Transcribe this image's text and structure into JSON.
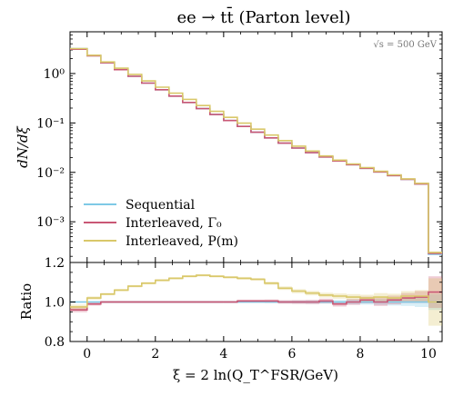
{
  "chart_data": {
    "type": "line",
    "style": "histogram-step",
    "title": "ee → tt̄ (Parton level)",
    "annotation": "√s = 500 GeV",
    "xlabel": "ξ = 2 ln(Q_T^FSR/GeV)",
    "xlim": [
      -0.5,
      10.4
    ],
    "x_ticks": [
      0,
      2,
      4,
      6,
      8,
      10
    ],
    "x_tick_labels": [
      "0",
      "2",
      "4",
      "6",
      "8",
      "10"
    ],
    "bin_edges": [
      -0.5,
      0,
      0.4,
      0.8,
      1.2,
      1.6,
      2.0,
      2.4,
      2.8,
      3.2,
      3.6,
      4.0,
      4.4,
      4.8,
      5.2,
      5.6,
      6.0,
      6.4,
      6.8,
      7.2,
      7.6,
      8.0,
      8.4,
      8.8,
      9.2,
      9.6,
      10.0,
      10.4
    ],
    "main_panel": {
      "ylabel": "dN/dξ",
      "yscale": "log",
      "ylim": [
        0.00015,
        7
      ],
      "y_ticks": [
        0.001,
        0.01,
        0.1,
        1
      ],
      "y_tick_labels": [
        "10⁻³",
        "10⁻²",
        "10⁻¹",
        "10⁰"
      ],
      "series": [
        {
          "name": "Sequential",
          "color": "#7ec9e6",
          "values": [
            3.2,
            2.3,
            1.65,
            1.2,
            0.88,
            0.64,
            0.47,
            0.35,
            0.26,
            0.195,
            0.148,
            0.112,
            0.085,
            0.065,
            0.05,
            0.039,
            0.031,
            0.025,
            0.0205,
            0.017,
            0.0143,
            0.0121,
            0.0102,
            0.0086,
            0.0072,
            0.0058,
            0.00022
          ]
        },
        {
          "name": "Interleaved, Γ₀",
          "color": "#c95775",
          "values": [
            3.1,
            2.28,
            1.65,
            1.2,
            0.88,
            0.64,
            0.47,
            0.35,
            0.26,
            0.195,
            0.148,
            0.112,
            0.085,
            0.065,
            0.05,
            0.039,
            0.031,
            0.025,
            0.0205,
            0.017,
            0.0143,
            0.0121,
            0.0102,
            0.0086,
            0.0072,
            0.0058,
            0.00023
          ]
        },
        {
          "name": "Interleaved, P(m)",
          "color": "#d9c86a",
          "values": [
            3.2,
            2.35,
            1.72,
            1.28,
            0.96,
            0.71,
            0.53,
            0.4,
            0.3,
            0.225,
            0.172,
            0.13,
            0.099,
            0.075,
            0.057,
            0.044,
            0.034,
            0.027,
            0.0215,
            0.0177,
            0.0148,
            0.0125,
            0.0105,
            0.0089,
            0.0074,
            0.006,
            0.00024
          ]
        }
      ]
    },
    "ratio_panel": {
      "ylabel": "Ratio",
      "ylim": [
        0.8,
        1.2
      ],
      "y_ticks": [
        0.8,
        1.0,
        1.2
      ],
      "y_tick_labels": [
        "0.8",
        "1.0",
        "1.2"
      ],
      "series": [
        {
          "name": "Sequential",
          "values": [
            1.0,
            1.0,
            1.0,
            1.0,
            1.0,
            1.0,
            1.0,
            1.0,
            1.0,
            1.0,
            1.0,
            1.0,
            1.0,
            1.0,
            1.0,
            1.0,
            1.0,
            1.0,
            1.0,
            1.0,
            1.0,
            1.0,
            1.0,
            1.0,
            1.0,
            1.0,
            1.0
          ],
          "band": [
            0.004,
            0.004,
            0.004,
            0.004,
            0.004,
            0.004,
            0.004,
            0.004,
            0.004,
            0.004,
            0.004,
            0.004,
            0.005,
            0.005,
            0.006,
            0.006,
            0.007,
            0.008,
            0.009,
            0.01,
            0.012,
            0.013,
            0.015,
            0.018,
            0.02,
            0.025,
            0.04
          ]
        },
        {
          "name": "Interleaved, Γ₀",
          "values": [
            0.96,
            0.99,
            1.0,
            1.0,
            1.0,
            1.0,
            1.0,
            1.0,
            1.0,
            1.0,
            1.0,
            1.0,
            1.005,
            1.005,
            1.005,
            1.0,
            1.0,
            1.0,
            1.005,
            0.99,
            1.0,
            1.01,
            1.0,
            1.01,
            1.02,
            1.025,
            1.05
          ],
          "band": [
            0.012,
            0.008,
            0.006,
            0.006,
            0.006,
            0.006,
            0.006,
            0.006,
            0.006,
            0.006,
            0.006,
            0.006,
            0.007,
            0.007,
            0.008,
            0.009,
            0.01,
            0.011,
            0.012,
            0.013,
            0.015,
            0.017,
            0.02,
            0.022,
            0.025,
            0.03,
            0.08
          ]
        },
        {
          "name": "Interleaved, P(m)",
          "values": [
            0.975,
            1.02,
            1.04,
            1.06,
            1.08,
            1.095,
            1.11,
            1.12,
            1.13,
            1.135,
            1.13,
            1.125,
            1.12,
            1.115,
            1.095,
            1.07,
            1.055,
            1.045,
            1.035,
            1.03,
            1.025,
            1.02,
            1.025,
            1.02,
            1.03,
            1.03,
            1.0
          ],
          "band": [
            0.012,
            0.008,
            0.006,
            0.006,
            0.006,
            0.006,
            0.006,
            0.006,
            0.006,
            0.006,
            0.006,
            0.006,
            0.007,
            0.007,
            0.008,
            0.009,
            0.01,
            0.011,
            0.012,
            0.013,
            0.015,
            0.017,
            0.02,
            0.022,
            0.025,
            0.03,
            0.12
          ]
        }
      ]
    },
    "legend_position": "lower-left"
  }
}
